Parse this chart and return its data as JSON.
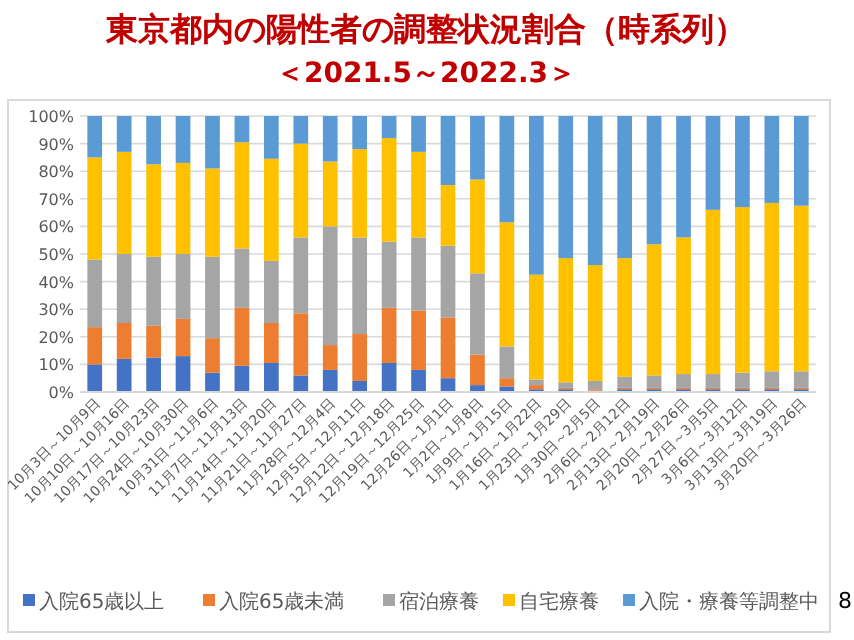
{
  "chart_data": {
    "type": "bar",
    "stacked": true,
    "title": "東京都内の陽性者の調整状況割合（時系列）",
    "subtitle": "＜2021.5～2022.3＞",
    "categories": [
      "10月3日～10月9日",
      "10月10日～10月16日",
      "10月17日～10月23日",
      "10月24日～10月30日",
      "10月31日～11月6日",
      "11月7日～11月13日",
      "11月14日～11月20日",
      "11月21日～11月27日",
      "11月28日～12月4日",
      "12月5日～12月11日",
      "12月12日～12月18日",
      "12月19日～12月25日",
      "12月26日～1月1日",
      "1月2日～1月8日",
      "1月9日～1月15日",
      "1月16日～1月22日",
      "1月23日～1月29日",
      "1月30日～2月5日",
      "2月6日～2月12日",
      "2月13日～2月19日",
      "2月20日～2月26日",
      "2月27日～3月5日",
      "3月6日～3月12日",
      "3月13日～3月19日",
      "3月20日～3月26日"
    ],
    "series": [
      {
        "name": "入院65歳以上",
        "color": "#4472c4",
        "values": [
          10,
          12,
          12.5,
          13,
          7,
          9.5,
          10.5,
          6,
          8,
          4,
          10.5,
          8,
          5,
          2.5,
          2,
          1,
          1,
          0.5,
          1,
          1,
          1,
          1,
          1,
          1,
          1
        ]
      },
      {
        "name": "入院65歳未満",
        "color": "#ed7d31",
        "values": [
          13.5,
          13,
          11.5,
          13.5,
          12.5,
          21,
          14.5,
          22.5,
          9,
          17,
          20,
          21.5,
          22,
          11,
          3,
          1.5,
          0.5,
          0.5,
          0.5,
          0.5,
          0.5,
          0.5,
          0.5,
          0.5,
          0.5
        ]
      },
      {
        "name": "宿泊療養",
        "color": "#a5a5a5",
        "values": [
          24.5,
          25,
          25,
          23.5,
          29.5,
          21.5,
          22.5,
          27.5,
          43,
          35,
          24,
          26.5,
          26,
          29.5,
          11.5,
          2,
          2,
          3,
          4,
          4.5,
          5,
          5,
          5.5,
          6,
          6
        ]
      },
      {
        "name": "自宅療養",
        "color": "#ffc000",
        "values": [
          37,
          37,
          33.5,
          33,
          32,
          38.5,
          37,
          34,
          23.5,
          32,
          37.5,
          31,
          22,
          34,
          45,
          38,
          45,
          42,
          43,
          47.5,
          49.5,
          59.5,
          60,
          61,
          60
        ]
      },
      {
        "name": "入院・療養等調整中",
        "color": "#5b9bd5",
        "values": [
          15,
          13,
          17.5,
          17,
          19,
          9.5,
          15.5,
          10,
          16.5,
          12,
          8,
          13,
          25,
          23,
          38.5,
          57.5,
          51.5,
          54,
          51.5,
          46.5,
          44,
          34,
          33,
          31.5,
          32.5
        ]
      }
    ],
    "ylim": [
      0,
      100
    ],
    "yticks": [
      {
        "value": 0,
        "label": "0%"
      },
      {
        "value": 10,
        "label": "10%"
      },
      {
        "value": 20,
        "label": "20%"
      },
      {
        "value": 30,
        "label": "30%"
      },
      {
        "value": 40,
        "label": "40%"
      },
      {
        "value": 50,
        "label": "50%"
      },
      {
        "value": 60,
        "label": "60%"
      },
      {
        "value": 70,
        "label": "70%"
      },
      {
        "value": 80,
        "label": "80%"
      },
      {
        "value": 90,
        "label": "90%"
      },
      {
        "value": 100,
        "label": "100%"
      }
    ],
    "grid": "y",
    "legend": "bottom",
    "annotations": [
      "8"
    ]
  }
}
